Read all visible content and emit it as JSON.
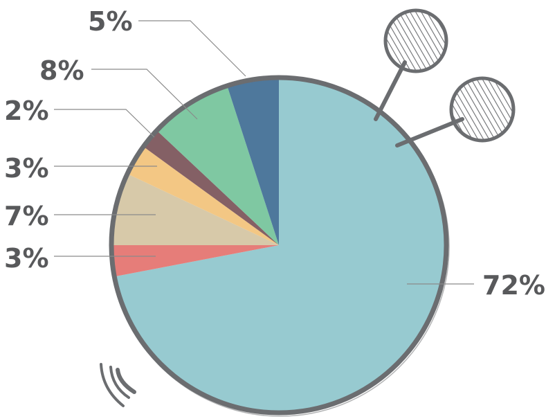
{
  "chart_data": {
    "type": "pie",
    "start_angle_deg": 0,
    "direction": "clockwise",
    "slices": [
      {
        "value": 72,
        "label": "72%",
        "color": "#8ec6cc"
      },
      {
        "value": 3,
        "label": "3%",
        "color": "#e4726e"
      },
      {
        "value": 7,
        "label": "7%",
        "color": "#d4c4a2"
      },
      {
        "value": 3,
        "label": "3%",
        "color": "#f2c27a"
      },
      {
        "value": 2,
        "label": "2%",
        "color": "#7a5258"
      },
      {
        "value": 8,
        "label": "8%",
        "color": "#74c39a"
      },
      {
        "value": 5,
        "label": "5%",
        "color": "#3f6d94"
      }
    ],
    "rim_color": "#6b6d70",
    "label_color": "#58595b",
    "leader_color": "#8a8a8a"
  }
}
